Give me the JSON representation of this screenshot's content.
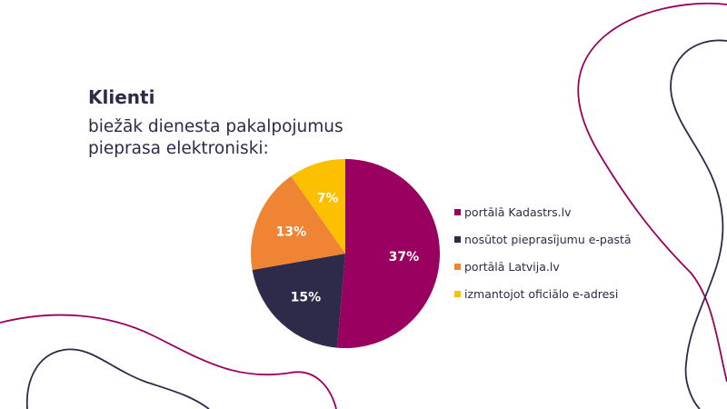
{
  "slide": {
    "title": "Klienti",
    "subtitle": "biežāk dienesta pakalpojumus pieprasa elektroniski:"
  },
  "colors": {
    "text": "#2d2a4a",
    "purple": "#99005f",
    "navy": "#2d2a4a",
    "orange": "#ee8434",
    "yellow": "#fcc000"
  },
  "chart_data": {
    "type": "pie",
    "slices": [
      {
        "label": "portālā Kadastrs.lv",
        "value": 37,
        "display": "37%",
        "color": "#99005f"
      },
      {
        "label": "nosūtot pieprasījumu e-pastā",
        "value": 15,
        "display": "15%",
        "color": "#2d2a4a"
      },
      {
        "label": "portālā Latvija.lv",
        "value": 13,
        "display": "13%",
        "color": "#ee8434"
      },
      {
        "label": "izmantojot oficiālo e-adresi",
        "value": 7,
        "display": "7%",
        "color": "#fcc000"
      }
    ],
    "legend": "right",
    "start": "12 o'clock, clockwise"
  }
}
